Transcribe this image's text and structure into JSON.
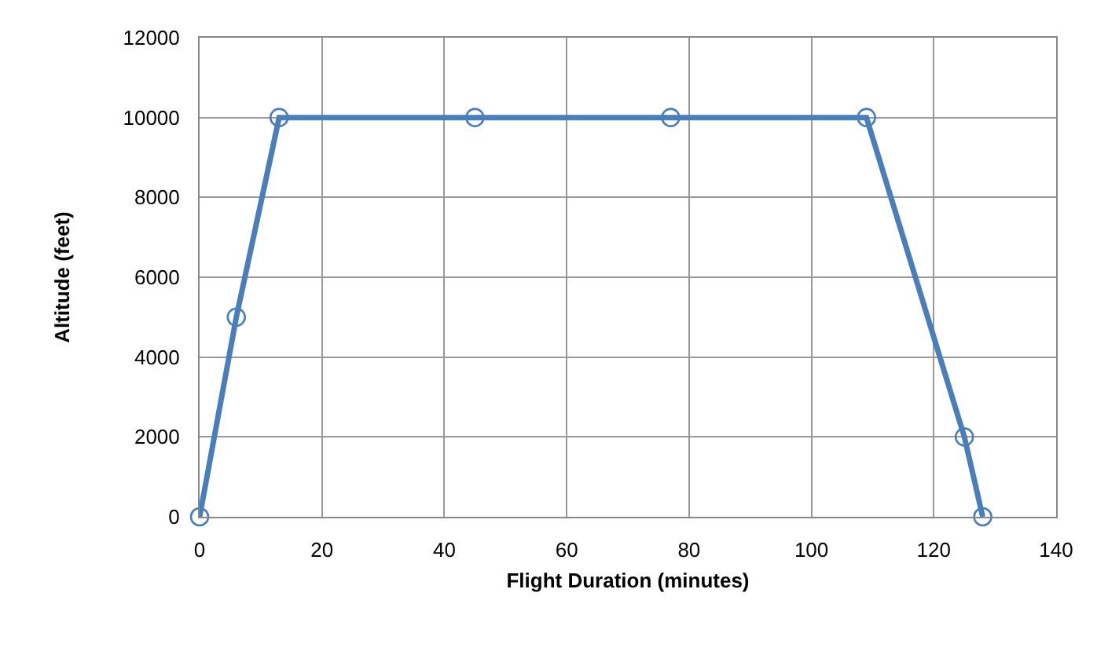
{
  "chart_data": {
    "type": "line",
    "xlabel": "Flight Duration (minutes)",
    "ylabel": "Altitude (feet)",
    "x": [
      0,
      6,
      13,
      45,
      77,
      109,
      125,
      128
    ],
    "series": [
      {
        "color": "#4a7ebb",
        "values": [
          0,
          5000,
          10000,
          10000,
          10000,
          10000,
          2000,
          0
        ]
      }
    ],
    "xlim": [
      0,
      140
    ],
    "xticks": [
      0,
      20,
      40,
      60,
      80,
      100,
      120,
      140
    ],
    "ylim": [
      0,
      12000
    ],
    "yticks": [
      0,
      2000,
      4000,
      6000,
      8000,
      10000,
      12000
    ],
    "grid": true,
    "marker": "circle",
    "line_style": "solid"
  }
}
